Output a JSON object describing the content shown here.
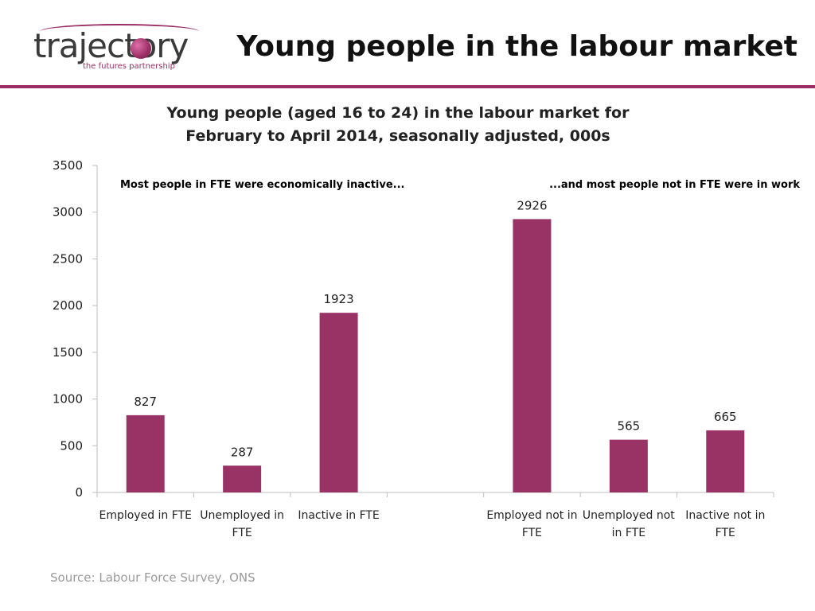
{
  "logo": {
    "word": "trajectory",
    "tagline": "the futures partnership"
  },
  "page_title": "Young people in the labour market",
  "source": "Source: Labour Force Survey, ONS",
  "colors": {
    "accent": "#9a2e64",
    "bar": "#9a3365"
  },
  "chart_data": {
    "type": "bar",
    "title_lines": [
      "Young people (aged 16 to 24) in the labour market for",
      "February to April 2014, seasonally adjusted, 000s"
    ],
    "categories": [
      [
        "Employed in FTE"
      ],
      [
        "Unemployed in",
        "FTE"
      ],
      [
        "Inactive in FTE"
      ],
      [
        ""
      ],
      [
        "Employed not in",
        "FTE"
      ],
      [
        "Unemployed not",
        "in FTE"
      ],
      [
        "Inactive not in",
        "FTE"
      ]
    ],
    "values": [
      827,
      287,
      1923,
      null,
      2926,
      565,
      665
    ],
    "data_labels": [
      "827",
      "287",
      "1923",
      "",
      "2926",
      "565",
      "665"
    ],
    "ylim": [
      0,
      3500
    ],
    "yticks": [
      0,
      500,
      1000,
      1500,
      2000,
      2500,
      3000,
      3500
    ],
    "annotations": [
      "Most people in FTE were economically inactive...",
      "...and most people not in FTE were in work"
    ],
    "grid": false,
    "legend": "none"
  }
}
